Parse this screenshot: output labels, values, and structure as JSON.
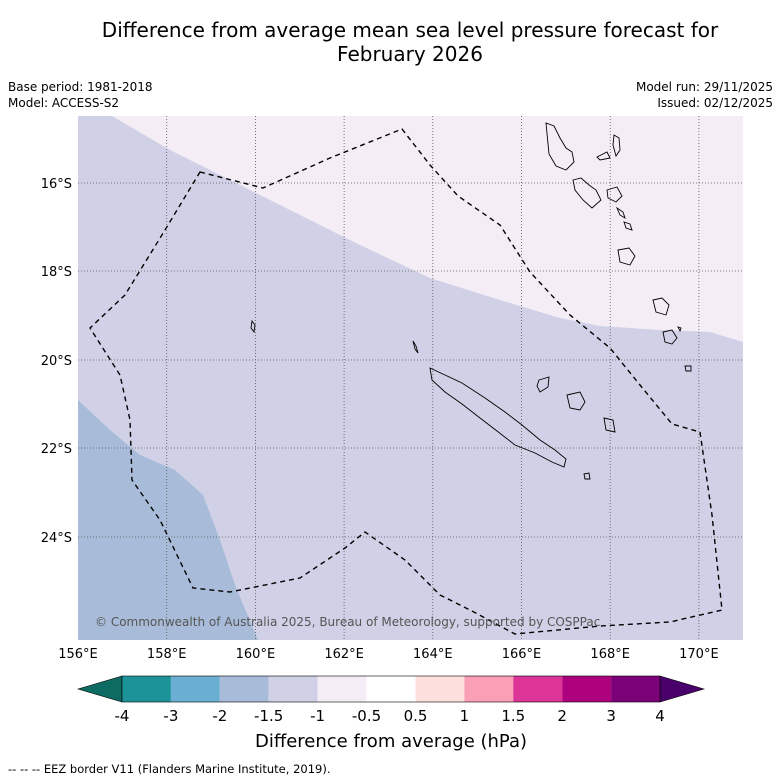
{
  "title_line1": "Difference from average mean sea level pressure forecast for",
  "title_line2": "February 2026",
  "base_period": "Base period: 1981-2018",
  "model": "Model: ACCESS-S2",
  "model_run": "Model run: 29/11/2025",
  "issued": "Issued: 02/12/2025",
  "lon_labels": [
    "156°E",
    "158°E",
    "160°E",
    "162°E",
    "164°E",
    "166°E",
    "168°E",
    "170°E"
  ],
  "lat_labels": [
    "16°S",
    "18°S",
    "20°S",
    "22°S",
    "24°S"
  ],
  "copyright": "© Commonwealth of Australia 2025, Bureau of Meteorology, supported by COSPPac",
  "colorbar": {
    "tick_labels": [
      "-4",
      "-3",
      "-2",
      "-1.5",
      "-1",
      "-0.5",
      "0.5",
      "1",
      "1.5",
      "2",
      "3",
      "4"
    ],
    "label": "Difference from average (hPa)",
    "colors": [
      "#1c9399",
      "#6aaed4",
      "#a8bcd9",
      "#d0d1e6",
      "#f4edf6",
      "#ffffff",
      "#fde0dd",
      "#fa9fb5",
      "#dd3497",
      "#ae017e",
      "#7a0177",
      "#49006a"
    ],
    "under_color": "#0e6b62",
    "over_color": "#49006a"
  },
  "field_colors": {
    "band_minus2_minus1_5": "#a8bcd9",
    "band_minus1_5_minus1": "#d0d1e6",
    "band_minus1_minus0_5": "#f4edf6"
  },
  "footnote": "--  --  -- EEZ border V11 (Flanders Marine Institute, 2019)."
}
